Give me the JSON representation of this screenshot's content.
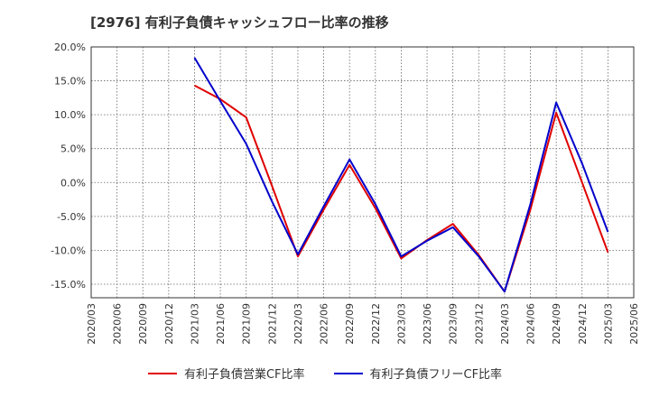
{
  "chart_data": {
    "type": "line",
    "title": "[2976]  有利子負債キャッシュフロー比率の推移",
    "x": [
      "2020/03",
      "2020/06",
      "2020/09",
      "2020/12",
      "2021/03",
      "2021/06",
      "2021/09",
      "2021/12",
      "2022/03",
      "2022/06",
      "2022/09",
      "2022/12",
      "2023/03",
      "2023/06",
      "2023/09",
      "2023/12",
      "2024/03",
      "2024/06",
      "2024/09",
      "2024/12",
      "2025/03",
      "2025/06"
    ],
    "ylim": [
      -17,
      20
    ],
    "yticks": [
      20,
      15,
      10,
      5,
      0,
      -5,
      -10,
      -15
    ],
    "ytick_labels": [
      "20.0%",
      "15.0%",
      "10.0%",
      "5.0%",
      "0.0%",
      "-5.0%",
      "-10.0%",
      "-15.0%"
    ],
    "grid": true,
    "legend_position": "bottom",
    "series": [
      {
        "name": "有利子負債営業CF比率",
        "color": "#e00000",
        "values": [
          null,
          null,
          null,
          null,
          14.3,
          12.3,
          9.6,
          -0.5,
          -10.9,
          -4.0,
          2.6,
          -3.8,
          -11.2,
          -8.5,
          -6.1,
          -10.7,
          -16.1,
          -4.0,
          10.3,
          0.0,
          -10.3,
          null
        ]
      },
      {
        "name": "有利子負債フリーCF比率",
        "color": "#0000cc",
        "values": [
          null,
          null,
          null,
          null,
          18.4,
          12.0,
          5.7,
          -2.8,
          -10.6,
          -3.5,
          3.4,
          -3.2,
          -10.9,
          -8.6,
          -6.6,
          -10.9,
          -16.1,
          -3.2,
          11.8,
          2.8,
          -7.3,
          null
        ]
      }
    ]
  }
}
